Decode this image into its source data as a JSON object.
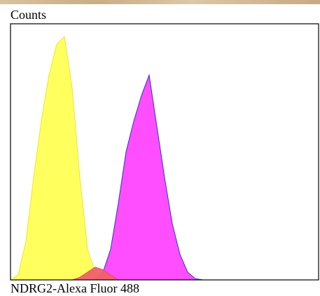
{
  "chart_data": {
    "type": "area",
    "y_label": "Counts",
    "x_label": "NDRG2-Alexa Fluor 488",
    "x": [
      0,
      2.5,
      5,
      7.5,
      10,
      12.5,
      15,
      17.5,
      20,
      22.5,
      25,
      27.5,
      30,
      32.5,
      35,
      37.5,
      40,
      42.5,
      45,
      47.5,
      50,
      52.5,
      55,
      57.5,
      60,
      62.5,
      65,
      70,
      80,
      90,
      100
    ],
    "series": [
      {
        "color": "#ffff55",
        "edge": "#e8e830",
        "values": [
          0,
          2,
          15,
          40,
          62,
          80,
          92,
          95,
          75,
          40,
          12,
          3,
          0,
          0,
          0,
          0,
          0,
          0,
          0,
          0,
          0,
          0,
          0,
          0,
          0,
          0,
          0,
          0,
          0,
          0,
          0
        ]
      },
      {
        "color": "#ff44ff",
        "edge": "#3333cc",
        "values": [
          0,
          0,
          0,
          0,
          0,
          0,
          0,
          0,
          0,
          0,
          0,
          0,
          3,
          12,
          30,
          50,
          62,
          72,
          80,
          60,
          40,
          22,
          10,
          3,
          0.5,
          0,
          0,
          0,
          0,
          0,
          0
        ]
      },
      {
        "color": "#f0606a",
        "edge": "#e05060",
        "values": [
          0,
          0,
          0,
          0,
          0,
          0,
          0,
          0,
          0,
          1,
          3,
          5,
          4,
          2,
          0,
          0,
          0,
          0,
          0,
          0,
          0,
          0,
          0,
          0,
          0,
          0,
          0,
          0,
          0,
          0,
          0
        ]
      }
    ],
    "xlim": [
      0,
      100
    ],
    "ylim": [
      0,
      100
    ]
  }
}
